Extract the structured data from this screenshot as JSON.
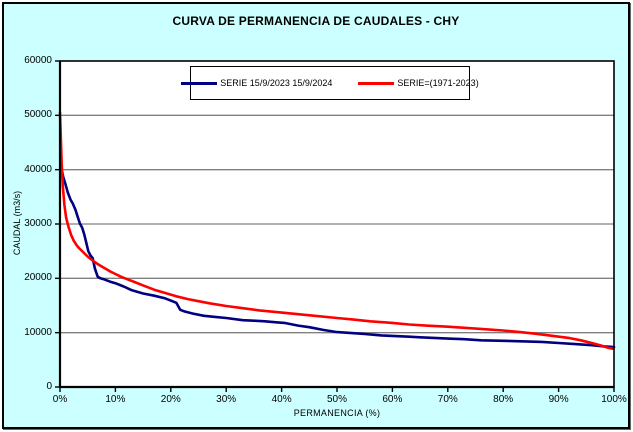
{
  "title": "CURVA DE PERMANENCIA DE CAUDALES - CHY",
  "colors": {
    "background": "#CCFFFF",
    "plot_background": "#FFFFFF",
    "grid": "#808080",
    "axis": "#000000",
    "series_blue": "#000080",
    "series_red": "#FF0000"
  },
  "chart_data": {
    "type": "line",
    "title": "CURVA DE PERMANENCIA DE CAUDALES - CHY",
    "xlabel": "PERMANENCIA (%)",
    "ylabel": "CAUDAL (m3/s)",
    "xlim": [
      0,
      100
    ],
    "ylim": [
      0,
      60000
    ],
    "x_ticks": [
      0,
      10,
      20,
      30,
      40,
      50,
      60,
      70,
      80,
      90,
      100
    ],
    "x_tick_labels": [
      "0%",
      "10%",
      "20%",
      "30%",
      "40%",
      "50%",
      "60%",
      "70%",
      "80%",
      "90%",
      "100%"
    ],
    "y_ticks": [
      0,
      10000,
      20000,
      30000,
      40000,
      50000,
      60000
    ],
    "y_tick_labels": [
      "0",
      "10000",
      "20000",
      "30000",
      "40000",
      "50000",
      "60000"
    ],
    "grid": "horizontal",
    "legend_position": "top-center",
    "series": [
      {
        "name": "SERIE 15/9/2023 15/9/2024",
        "color": "#000080",
        "points": [
          [
            0,
            40000
          ],
          [
            0.4,
            39600
          ],
          [
            0.6,
            38600
          ],
          [
            1,
            37300
          ],
          [
            1.4,
            35800
          ],
          [
            1.9,
            34500
          ],
          [
            2.3,
            33800
          ],
          [
            2.8,
            32600
          ],
          [
            3.2,
            31300
          ],
          [
            3.6,
            30100
          ],
          [
            4,
            29300
          ],
          [
            4.4,
            28000
          ],
          [
            4.8,
            26300
          ],
          [
            5.1,
            25000
          ],
          [
            5.5,
            24200
          ],
          [
            5.9,
            23700
          ],
          [
            6.3,
            21800
          ],
          [
            6.8,
            20300
          ],
          [
            7.3,
            20000
          ],
          [
            8,
            19800
          ],
          [
            9,
            19400
          ],
          [
            10,
            19100
          ],
          [
            11.5,
            18500
          ],
          [
            13,
            17800
          ],
          [
            15,
            17200
          ],
          [
            17,
            16800
          ],
          [
            19,
            16300
          ],
          [
            20.5,
            15700
          ],
          [
            21,
            15500
          ],
          [
            21.7,
            14200
          ],
          [
            22.5,
            13900
          ],
          [
            24,
            13500
          ],
          [
            26,
            13100
          ],
          [
            28,
            12900
          ],
          [
            30,
            12700
          ],
          [
            33,
            12300
          ],
          [
            35,
            12200
          ],
          [
            37,
            12100
          ],
          [
            39,
            11900
          ],
          [
            40.5,
            11800
          ],
          [
            43,
            11300
          ],
          [
            45,
            11000
          ],
          [
            47.5,
            10500
          ],
          [
            50,
            10100
          ],
          [
            53,
            9900
          ],
          [
            55,
            9750
          ],
          [
            58,
            9500
          ],
          [
            60,
            9400
          ],
          [
            63,
            9250
          ],
          [
            65,
            9150
          ],
          [
            68,
            9000
          ],
          [
            70,
            8900
          ],
          [
            73,
            8800
          ],
          [
            76,
            8600
          ],
          [
            80,
            8500
          ],
          [
            84,
            8400
          ],
          [
            87,
            8300
          ],
          [
            90,
            8100
          ],
          [
            93,
            7900
          ],
          [
            96,
            7700
          ],
          [
            98,
            7500
          ],
          [
            100,
            7350
          ]
        ]
      },
      {
        "name": "SERIE=(1971-2023)",
        "color": "#FF0000",
        "points": [
          [
            0,
            50500
          ],
          [
            0.15,
            46000
          ],
          [
            0.3,
            41000
          ],
          [
            0.5,
            37000
          ],
          [
            0.8,
            33500
          ],
          [
            1.1,
            31200
          ],
          [
            1.5,
            29600
          ],
          [
            2,
            28000
          ],
          [
            2.5,
            26900
          ],
          [
            3,
            26100
          ],
          [
            3.5,
            25500
          ],
          [
            4,
            25000
          ],
          [
            5,
            24000
          ],
          [
            6,
            23200
          ],
          [
            7,
            22500
          ],
          [
            8,
            21900
          ],
          [
            9,
            21300
          ],
          [
            10,
            20800
          ],
          [
            11,
            20300
          ],
          [
            12,
            19900
          ],
          [
            13.5,
            19300
          ],
          [
            15,
            18700
          ],
          [
            17,
            17900
          ],
          [
            19,
            17300
          ],
          [
            21,
            16700
          ],
          [
            23,
            16200
          ],
          [
            25,
            15800
          ],
          [
            27,
            15400
          ],
          [
            30,
            14900
          ],
          [
            33,
            14500
          ],
          [
            36,
            14100
          ],
          [
            40,
            13700
          ],
          [
            43,
            13400
          ],
          [
            46,
            13100
          ],
          [
            50,
            12700
          ],
          [
            53,
            12400
          ],
          [
            56,
            12100
          ],
          [
            60,
            11800
          ],
          [
            63,
            11500
          ],
          [
            66,
            11300
          ],
          [
            70,
            11100
          ],
          [
            73,
            10900
          ],
          [
            76,
            10700
          ],
          [
            80,
            10400
          ],
          [
            83,
            10100
          ],
          [
            86,
            9800
          ],
          [
            89,
            9400
          ],
          [
            92,
            9000
          ],
          [
            94,
            8600
          ],
          [
            96,
            8100
          ],
          [
            97.5,
            7700
          ],
          [
            99,
            7200
          ],
          [
            99.8,
            7050
          ]
        ]
      }
    ]
  }
}
